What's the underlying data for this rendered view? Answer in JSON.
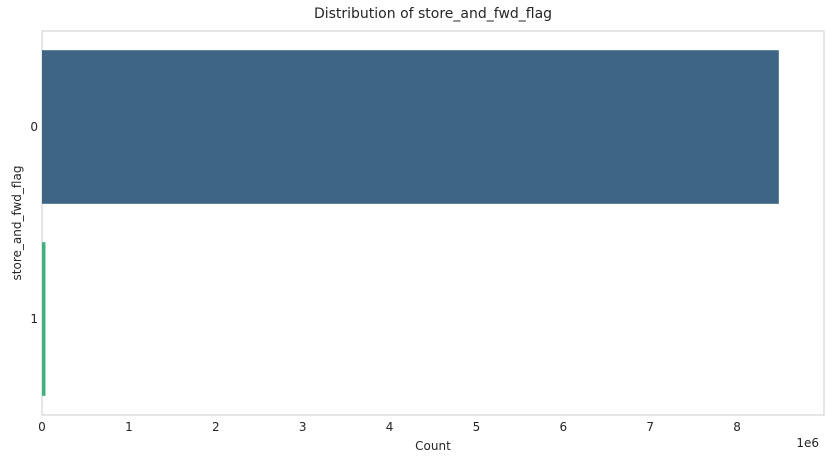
{
  "chart_data": {
    "type": "bar",
    "orientation": "horizontal",
    "title": "Distribution of store_and_fwd_flag",
    "xlabel": "Count",
    "ylabel": "store_and_fwd_flag",
    "categories": [
      "0",
      "1"
    ],
    "values": [
      8480000,
      40000
    ],
    "bar_colors": [
      "#3e6584",
      "#3fb07e"
    ],
    "xlim": [
      0,
      9000000
    ],
    "x_ticks": [
      0,
      1000000,
      2000000,
      3000000,
      4000000,
      5000000,
      6000000,
      7000000,
      8000000
    ],
    "x_tick_labels": [
      "0",
      "1",
      "2",
      "3",
      "4",
      "5",
      "6",
      "7",
      "8"
    ],
    "x_offset_label": "1e6",
    "grid": false
  }
}
